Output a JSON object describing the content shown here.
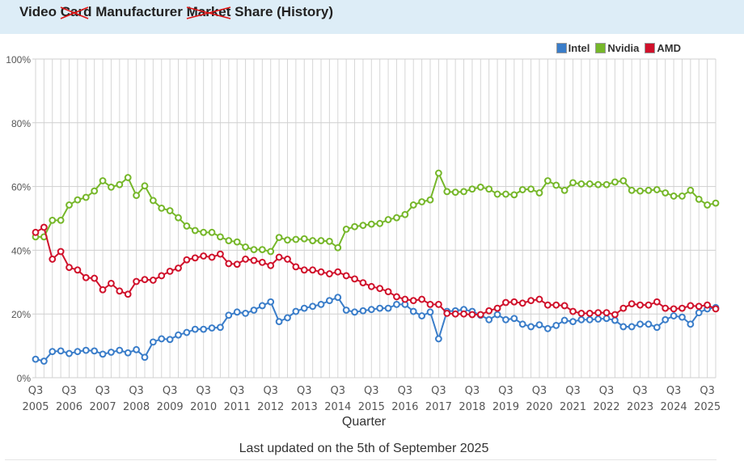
{
  "title": {
    "w1": "Video",
    "w2": "Card",
    "w3": "Manufacturer",
    "w4": "Market",
    "w5": "Share (History)"
  },
  "legend": [
    {
      "name": "Intel",
      "color": "#3a7dc9"
    },
    {
      "name": "Nvidia",
      "color": "#76b72a"
    },
    {
      "name": "AMD",
      "color": "#d0112b"
    }
  ],
  "footer": "Last updated on the 5th of September 2025",
  "chart_data": {
    "type": "line",
    "title": "Video Card Manufacturer Market Share (History)",
    "xlabel": "Quarter",
    "ylabel": "",
    "ylim": [
      0,
      100
    ],
    "yticks": [
      "0%",
      "20%",
      "40%",
      "60%",
      "80%",
      "100%"
    ],
    "xticks": [
      {
        "q": "Q3",
        "y": "2005"
      },
      {
        "q": "Q3",
        "y": "2006"
      },
      {
        "q": "Q3",
        "y": "2007"
      },
      {
        "q": "Q3",
        "y": "2008"
      },
      {
        "q": "Q3",
        "y": "2009"
      },
      {
        "q": "Q3",
        "y": "2010"
      },
      {
        "q": "Q3",
        "y": "2011"
      },
      {
        "q": "Q3",
        "y": "2012"
      },
      {
        "q": "Q3",
        "y": "2013"
      },
      {
        "q": "Q3",
        "y": "2014"
      },
      {
        "q": "Q3",
        "y": "2015"
      },
      {
        "q": "Q3",
        "y": "2016"
      },
      {
        "q": "Q3",
        "y": "2017"
      },
      {
        "q": "Q3",
        "y": "2018"
      },
      {
        "q": "Q3",
        "y": "2019"
      },
      {
        "q": "Q3",
        "y": "2020"
      },
      {
        "q": "Q3",
        "y": "2021"
      },
      {
        "q": "Q3",
        "y": "2022"
      },
      {
        "q": "Q3",
        "y": "2023"
      },
      {
        "q": "Q3",
        "y": "2024"
      },
      {
        "q": "Q3",
        "y": "2025"
      }
    ],
    "x_range": [
      "2005 Q3",
      "2025 Q3"
    ],
    "grid": true,
    "legend_position": "top-right",
    "series": [
      {
        "name": "Intel",
        "color": "#3a7dc9",
        "values": [
          5.8,
          5.2,
          8.2,
          8.4,
          7.6,
          8.2,
          8.6,
          8.4,
          7.4,
          8.0,
          8.6,
          7.8,
          8.8,
          6.4,
          11.2,
          12.2,
          12.0,
          13.4,
          14.2,
          15.2,
          15.2,
          15.6,
          15.8,
          19.6,
          20.6,
          20.2,
          21.2,
          22.6,
          23.8,
          17.6,
          18.8,
          20.8,
          21.8,
          22.4,
          23.0,
          24.2,
          25.2,
          21.2,
          20.6,
          21.0,
          21.4,
          21.8,
          21.8,
          23.0,
          23.0,
          20.8,
          19.4,
          20.6,
          12.2,
          20.8,
          21.0,
          21.4,
          20.8,
          19.6,
          18.2,
          19.8,
          18.2,
          18.6,
          16.8,
          16.0,
          16.6,
          15.4,
          16.4,
          18.0,
          17.6,
          18.2,
          18.2,
          18.4,
          18.6,
          18.0,
          16.0,
          16.0,
          16.8,
          16.8,
          15.8,
          18.2,
          19.4,
          19.0,
          16.8,
          20.4,
          21.6,
          22.0
        ]
      },
      {
        "name": "Nvidia",
        "color": "#76b72a",
        "values": [
          44.2,
          44.2,
          49.4,
          49.4,
          54.2,
          55.8,
          56.6,
          58.6,
          61.8,
          59.8,
          60.6,
          62.8,
          57.2,
          60.2,
          55.6,
          53.2,
          52.4,
          50.2,
          47.6,
          46.2,
          45.6,
          45.6,
          44.2,
          43.0,
          42.6,
          41.0,
          40.2,
          40.2,
          39.6,
          44.0,
          43.2,
          43.4,
          43.6,
          43.0,
          43.0,
          42.8,
          40.8,
          46.6,
          47.4,
          47.8,
          48.2,
          48.4,
          49.6,
          50.2,
          51.2,
          54.2,
          55.2,
          55.8,
          64.2,
          58.4,
          58.2,
          58.4,
          59.2,
          59.8,
          59.2,
          57.6,
          57.6,
          57.4,
          59.0,
          59.2,
          58.0,
          61.8,
          60.4,
          58.8,
          61.2,
          60.8,
          60.8,
          60.6,
          60.6,
          61.4,
          61.8,
          58.8,
          58.6,
          58.8,
          59.0,
          58.0,
          57.0,
          57.0,
          58.8,
          56.0,
          54.2,
          54.8
        ]
      },
      {
        "name": "AMD",
        "color": "#d0112b",
        "values": [
          45.6,
          47.2,
          37.2,
          39.6,
          34.6,
          33.8,
          31.4,
          31.2,
          27.6,
          29.6,
          27.2,
          26.2,
          30.2,
          30.8,
          30.6,
          32.0,
          33.4,
          34.4,
          37.0,
          37.6,
          38.2,
          37.8,
          38.8,
          35.8,
          35.6,
          37.2,
          36.8,
          36.2,
          35.2,
          37.8,
          37.2,
          34.8,
          33.8,
          33.8,
          33.2,
          32.6,
          33.2,
          32.0,
          31.0,
          29.8,
          28.6,
          28.0,
          27.0,
          25.4,
          24.6,
          24.2,
          24.6,
          23.0,
          23.0,
          20.2,
          20.0,
          20.0,
          19.8,
          19.8,
          21.0,
          21.8,
          23.6,
          23.8,
          23.4,
          24.2,
          24.6,
          22.8,
          22.8,
          22.6,
          20.8,
          20.2,
          20.2,
          20.4,
          20.4,
          19.8,
          21.8,
          23.2,
          22.8,
          22.8,
          23.8,
          21.8,
          21.6,
          21.8,
          22.6,
          22.4,
          22.8,
          21.6
        ]
      }
    ]
  }
}
